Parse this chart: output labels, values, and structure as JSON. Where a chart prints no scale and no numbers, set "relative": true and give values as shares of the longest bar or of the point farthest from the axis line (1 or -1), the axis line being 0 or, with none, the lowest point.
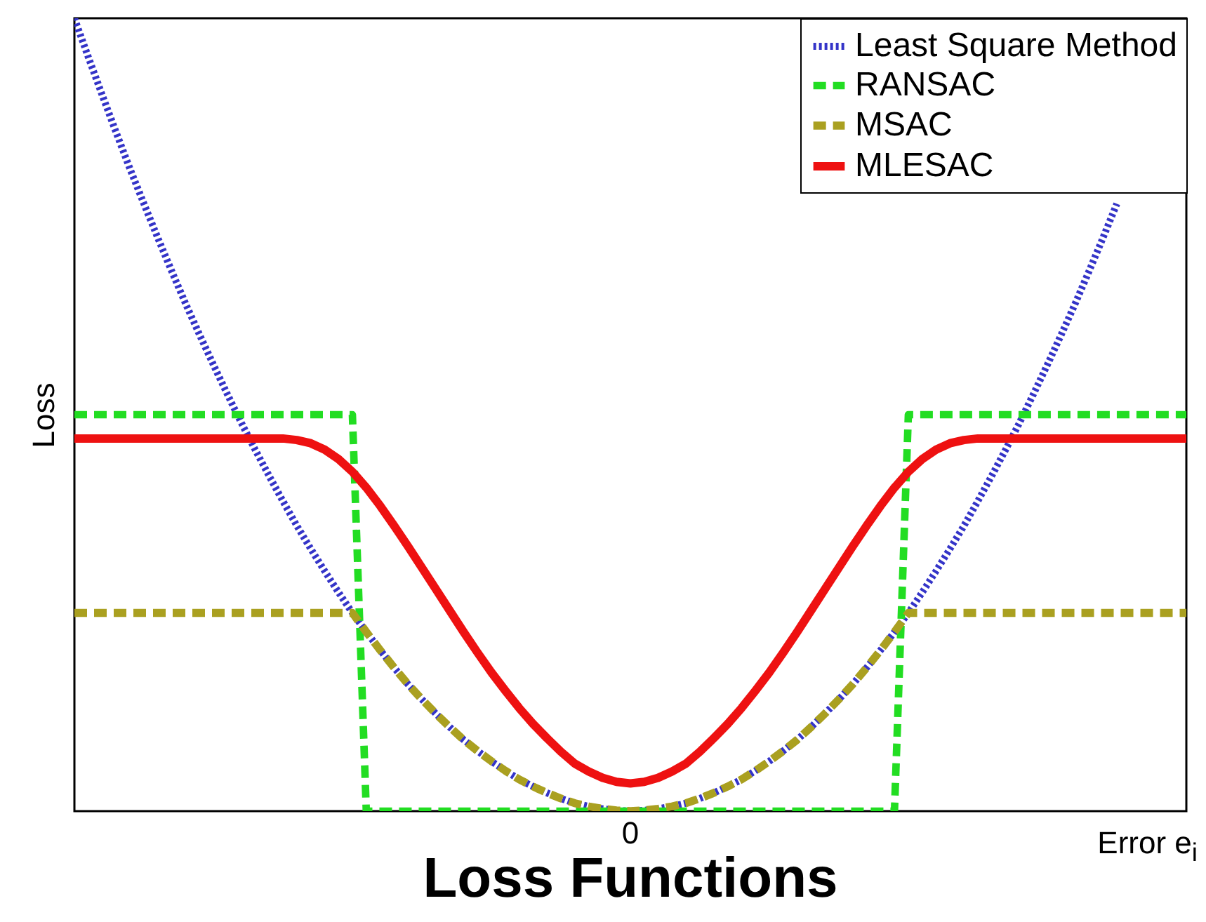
{
  "chart_data": {
    "type": "line",
    "title": "Loss Functions",
    "xlabel": "Error e$_{i}$",
    "ylabel": "Loss",
    "relative": true,
    "grid": false,
    "legend": "top right",
    "annotations": [
      "0"
    ],
    "categories": [
      null,
      null,
      null,
      null,
      null,
      null,
      null,
      null,
      null,
      null,
      null,
      null,
      null,
      null,
      null,
      null,
      null,
      null,
      null,
      null,
      null,
      null,
      null,
      null,
      null,
      null,
      null,
      null,
      null,
      null,
      null,
      null,
      null,
      null,
      null,
      null,
      null,
      null,
      null,
      null,
      null,
      null,
      null,
      null,
      null,
      null,
      null,
      null,
      null,
      null,
      null,
      null,
      null,
      null,
      null,
      null,
      null,
      null,
      null,
      null,
      null,
      null,
      null,
      null,
      null,
      null,
      null,
      null,
      null,
      null,
      null,
      null,
      null,
      null,
      null,
      null,
      null,
      null,
      null,
      null,
      null
    ],
    "series": [
      {
        "name": "Least Square Method",
        "color": "#3434c8",
        "line_style": "dotted",
        "values": [
          1,
          0.951,
          0.903,
          0.856,
          0.81,
          0.766,
          0.723,
          0.681,
          0.64,
          0.601,
          0.563,
          0.526,
          0.49,
          0.456,
          0.423,
          0.391,
          0.36,
          0.331,
          0.303,
          0.276,
          0.25,
          0.226,
          0.203,
          0.181,
          0.16,
          0.141,
          0.123,
          0.106,
          0.09,
          0.076,
          0.063,
          0.051,
          0.04,
          0.031,
          0.023,
          0.016,
          0.01,
          0.006,
          0.003,
          0.001,
          0,
          0.001,
          0.003,
          0.006,
          0.01,
          0.016,
          0.023,
          0.031,
          0.04,
          0.051,
          0.063,
          0.076,
          0.09,
          0.106,
          0.123,
          0.141,
          0.16,
          0.181,
          0.203,
          0.226,
          0.25,
          0.276,
          0.303,
          0.331,
          0.36,
          0.391,
          0.423,
          0.456,
          0.49,
          0.526,
          0.563,
          0.601,
          0.64,
          0.681,
          0.723,
          0.766,
          null,
          null,
          null,
          null,
          null
        ]
      },
      {
        "name": "RANSAC",
        "color": "#22dd22",
        "line_style": "dashed",
        "values": [
          0.5,
          0.5,
          0.5,
          0.5,
          0.5,
          0.5,
          0.5,
          0.5,
          0.5,
          0.5,
          0.5,
          0.5,
          0.5,
          0.5,
          0.5,
          0.5,
          0.5,
          0.5,
          0.5,
          0.5,
          0.5,
          0,
          0,
          0,
          0,
          0,
          0,
          0,
          0,
          0,
          0,
          0,
          0,
          0,
          0,
          0,
          0,
          0,
          0,
          0,
          0,
          0,
          0,
          0,
          0,
          0,
          0,
          0,
          0,
          0,
          0,
          0,
          0,
          0,
          0,
          0,
          0,
          0,
          0,
          0,
          0.5,
          0.5,
          0.5,
          0.5,
          0.5,
          0.5,
          0.5,
          0.5,
          0.5,
          0.5,
          0.5,
          0.5,
          0.5,
          0.5,
          0.5,
          0.5,
          0.5,
          0.5,
          0.5,
          0.5,
          0.5
        ]
      },
      {
        "name": "MSAC",
        "color": "#aaa020",
        "line_style": "dashed",
        "values": [
          0.25,
          0.25,
          0.25,
          0.25,
          0.25,
          0.25,
          0.25,
          0.25,
          0.25,
          0.25,
          0.25,
          0.25,
          0.25,
          0.25,
          0.25,
          0.25,
          0.25,
          0.25,
          0.25,
          0.25,
          0.25,
          0.226,
          0.203,
          0.181,
          0.16,
          0.141,
          0.123,
          0.106,
          0.09,
          0.076,
          0.063,
          0.051,
          0.04,
          0.031,
          0.023,
          0.016,
          0.01,
          0.006,
          0.003,
          0.001,
          0,
          0.001,
          0.003,
          0.006,
          0.01,
          0.016,
          0.023,
          0.031,
          0.04,
          0.051,
          0.063,
          0.076,
          0.09,
          0.106,
          0.123,
          0.141,
          0.16,
          0.181,
          0.203,
          0.226,
          0.25,
          0.25,
          0.25,
          0.25,
          0.25,
          0.25,
          0.25,
          0.25,
          0.25,
          0.25,
          0.25,
          0.25,
          0.25,
          0.25,
          0.25,
          0.25,
          0.25,
          0.25,
          0.25,
          0.25,
          0.25
        ]
      },
      {
        "name": "MLESAC",
        "color": "#ee1111",
        "line_style": "solid",
        "values": [
          0.47,
          0.47,
          0.47,
          0.47,
          0.47,
          0.47,
          0.47,
          0.47,
          0.47,
          0.47,
          0.47,
          0.47,
          0.47,
          0.47,
          0.47,
          0.47,
          0.468,
          0.464,
          0.456,
          0.444,
          0.428,
          0.408,
          0.385,
          0.36,
          0.334,
          0.307,
          0.28,
          0.253,
          0.226,
          0.2,
          0.175,
          0.152,
          0.13,
          0.11,
          0.092,
          0.075,
          0.06,
          0.05,
          0.042,
          0.037,
          0.035,
          0.037,
          0.042,
          0.05,
          0.06,
          0.075,
          0.092,
          0.11,
          0.13,
          0.152,
          0.175,
          0.2,
          0.226,
          0.253,
          0.28,
          0.307,
          0.334,
          0.36,
          0.385,
          0.408,
          0.428,
          0.444,
          0.456,
          0.464,
          0.468,
          0.47,
          0.47,
          0.47,
          0.47,
          0.47,
          0.47,
          0.47,
          0.47,
          0.47,
          0.47,
          0.47,
          0.47,
          0.47,
          0.47,
          0.47,
          0.47
        ]
      }
    ]
  }
}
